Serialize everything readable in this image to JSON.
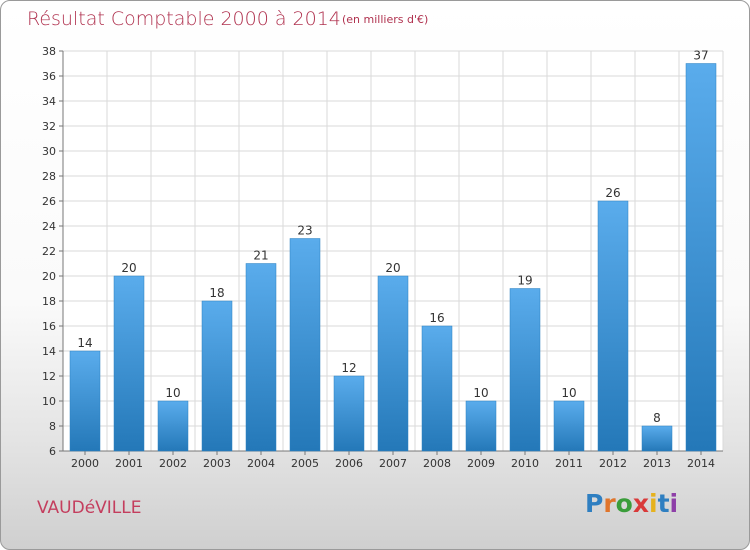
{
  "header": {
    "title": "Résultat Comptable 2000 à 2014",
    "subtitle": "(en milliers d'€)"
  },
  "footer": {
    "commune": "VAUDéVILLE",
    "logo_letters": [
      "P",
      "r",
      "o",
      "x",
      "i",
      "t",
      "i"
    ]
  },
  "colors": {
    "bar_light": "#5aacec",
    "bar_dark": "#2478b8",
    "title": "#b0324f",
    "grid": "#dadada"
  },
  "chart_data": {
    "type": "bar",
    "title": "Résultat Comptable 2000 à 2014",
    "subtitle": "(en milliers d'€)",
    "xlabel": "",
    "ylabel": "",
    "categories": [
      "2000",
      "2001",
      "2002",
      "2003",
      "2004",
      "2005",
      "2006",
      "2007",
      "2008",
      "2009",
      "2010",
      "2011",
      "2012",
      "2013",
      "2014"
    ],
    "values": [
      14,
      20,
      10,
      18,
      21,
      23,
      12,
      20,
      16,
      10,
      19,
      10,
      26,
      8,
      37
    ],
    "data_labels": [
      "14",
      "20",
      "10",
      "18",
      "21",
      "23",
      "12",
      "20",
      "16",
      "10",
      "19",
      "10",
      "26",
      "8",
      "37"
    ],
    "ylim": [
      6,
      38
    ],
    "yticks": [
      "6",
      "8",
      "10",
      "12",
      "14",
      "16",
      "18",
      "20",
      "22",
      "24",
      "26",
      "28",
      "30",
      "32",
      "34",
      "36",
      "38"
    ],
    "grid": true,
    "legend": "none"
  }
}
